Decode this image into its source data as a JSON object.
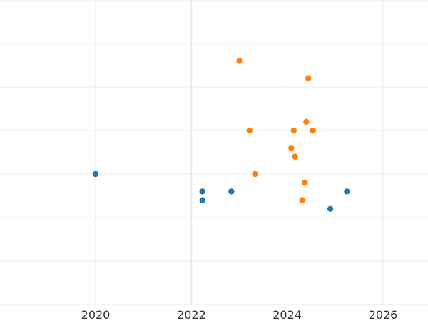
{
  "chart_data": {
    "type": "scatter",
    "title": "",
    "xlabel": "",
    "ylabel": "",
    "x_ticks": [
      "2020",
      "2022",
      "2024",
      "2026"
    ],
    "x_range": [
      "2018-07-01",
      "2026-10-01"
    ],
    "y_range": [
      0,
      7
    ],
    "grid": true,
    "legend": "none",
    "series": [
      {
        "color": "#1f77b4",
        "points": [
          {
            "x": "2020-01-01",
            "y": 3.0
          },
          {
            "x": "2022-03-25",
            "y": 2.6
          },
          {
            "x": "2022-03-25",
            "y": 2.4
          },
          {
            "x": "2022-11-01",
            "y": 2.6
          },
          {
            "x": "2024-11-25",
            "y": 2.2
          },
          {
            "x": "2025-04-01",
            "y": 2.6
          }
        ]
      },
      {
        "color": "#ff7f0e",
        "points": [
          {
            "x": "2023-01-01",
            "y": 5.6
          },
          {
            "x": "2024-06-10",
            "y": 5.2
          },
          {
            "x": "2023-03-20",
            "y": 4.0
          },
          {
            "x": "2024-05-25",
            "y": 4.2
          },
          {
            "x": "2024-02-20",
            "y": 4.0
          },
          {
            "x": "2024-07-15",
            "y": 4.0
          },
          {
            "x": "2024-02-01",
            "y": 3.6
          },
          {
            "x": "2024-03-01",
            "y": 3.4
          },
          {
            "x": "2023-05-01",
            "y": 3.0
          },
          {
            "x": "2024-05-15",
            "y": 2.8
          },
          {
            "x": "2024-04-25",
            "y": 2.4
          }
        ]
      }
    ]
  }
}
